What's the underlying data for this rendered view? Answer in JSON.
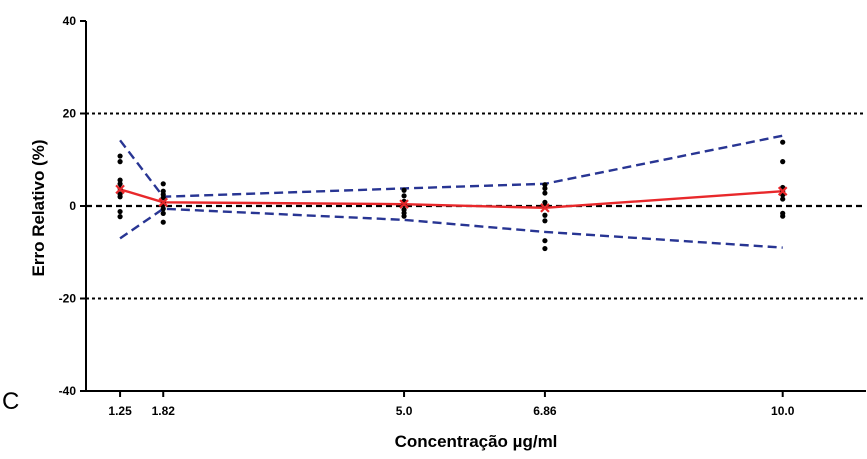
{
  "chart_data": {
    "type": "scatter",
    "panel_label": "C",
    "xlabel": "Concentração µg/ml",
    "ylabel": "Erro Relativo (%)",
    "xlim": [
      0.8,
      11.1
    ],
    "ylim": [
      -40,
      40
    ],
    "x_ticks": [
      {
        "value": 1.25,
        "label": "1.25"
      },
      {
        "value": 1.82,
        "label": "1.82"
      },
      {
        "value": 5.0,
        "label": "5.0"
      },
      {
        "value": 6.86,
        "label": "6.86"
      },
      {
        "value": 10.0,
        "label": "10.0"
      }
    ],
    "y_ticks": [
      {
        "value": -40,
        "label": "-40"
      },
      {
        "value": -20,
        "label": "-20"
      },
      {
        "value": 0,
        "label": "0"
      },
      {
        "value": 20,
        "label": "20"
      },
      {
        "value": 40,
        "label": "40"
      }
    ],
    "reference_lines": [
      {
        "y": 20,
        "style": "dotted",
        "color": "#000000"
      },
      {
        "y": -20,
        "style": "dotted",
        "color": "#000000"
      },
      {
        "y": 0,
        "style": "dashed",
        "color": "#000000"
      }
    ],
    "points": {
      "color": "#000000",
      "data": [
        {
          "x": 1.25,
          "y": [
            10.8,
            9.6,
            5.6,
            4.8,
            3.8,
            2.6,
            2.0,
            -1.2,
            -2.3
          ]
        },
        {
          "x": 1.82,
          "y": [
            4.8,
            3.2,
            2.5,
            1.8,
            0.6,
            0.3,
            -0.6,
            -1.6,
            -3.5
          ]
        },
        {
          "x": 5.0,
          "y": [
            3.4,
            2.2,
            1.0,
            0.2,
            -0.8,
            -1.5,
            -2.2
          ]
        },
        {
          "x": 6.86,
          "y": [
            4.6,
            3.8,
            2.8,
            0.8,
            0.0,
            -2.0,
            -3.2,
            -7.5,
            -9.2
          ]
        },
        {
          "x": 10.0,
          "y": [
            13.8,
            9.6,
            4.0,
            3.2,
            2.4,
            1.5,
            -1.6,
            -2.2
          ]
        }
      ]
    },
    "series": [
      {
        "role": "mean",
        "color": "#e8282b",
        "style": "solid",
        "marker": "x",
        "x": [
          1.25,
          1.82,
          5.0,
          6.86,
          10.0
        ],
        "y": [
          3.6,
          0.8,
          0.4,
          -0.4,
          3.2
        ]
      },
      {
        "role": "upper",
        "color": "#283593",
        "style": "dashed",
        "x": [
          1.25,
          1.82,
          5.0,
          6.86,
          10.0
        ],
        "y": [
          14.2,
          2.0,
          3.8,
          4.8,
          15.2
        ]
      },
      {
        "role": "lower",
        "color": "#283593",
        "style": "dashed",
        "x": [
          1.25,
          1.82,
          5.0,
          6.86,
          10.0
        ],
        "y": [
          -7.0,
          -0.6,
          -3.0,
          -5.6,
          -9.0
        ]
      }
    ]
  }
}
